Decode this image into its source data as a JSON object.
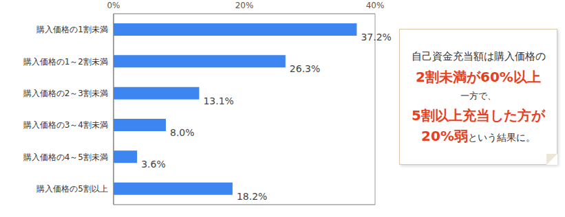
{
  "chart_data": {
    "type": "bar",
    "orientation": "horizontal",
    "categories": [
      "購入価格の1割未満",
      "購入価格の1～2割未満",
      "購入価格の2～3割未満",
      "購入価格の3～4割未満",
      "購入価格の4～5割未満",
      "購入価格の5割以上"
    ],
    "values": [
      37.2,
      26.3,
      13.1,
      8.0,
      3.6,
      18.2
    ],
    "value_labels": [
      "37.2%",
      "26.3%",
      "13.1%",
      "8.0%",
      "3.6%",
      "18.2%"
    ],
    "data_labels": true,
    "color": "#3d86f2",
    "xlim": [
      0,
      40
    ],
    "xticks": [
      {
        "value": 0,
        "label": "0%"
      },
      {
        "value": 20,
        "label": "20%"
      },
      {
        "value": 40,
        "label": "40%"
      }
    ],
    "grid": true,
    "annotations": [
      [
        "自己資金充当額は購入価格の"
      ],
      [
        "2割未満が60%以上"
      ],
      [
        "一方で、"
      ],
      [
        "5割以上充当した方が"
      ],
      [
        "20%弱",
        "という結果に。"
      ]
    ]
  }
}
